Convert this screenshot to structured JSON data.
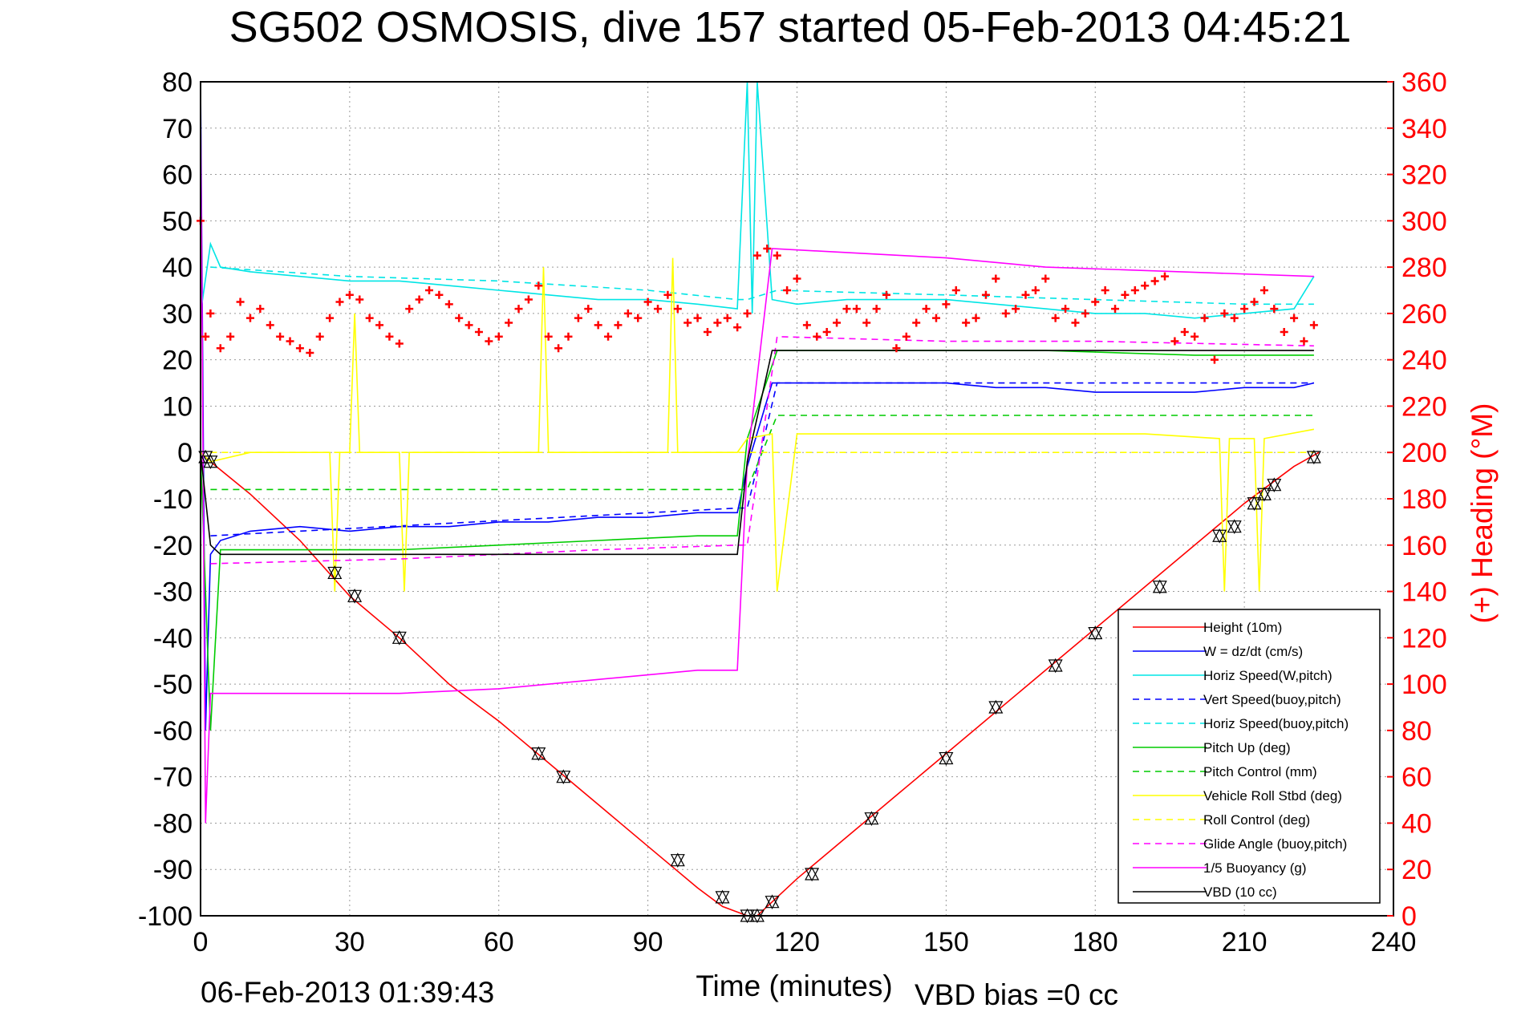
{
  "chart_data": {
    "type": "line",
    "title": "SG502 OSMOSIS, dive 157 started 05-Feb-2013 04:45:21",
    "xlabel": "Time (minutes)",
    "ylabel": "",
    "y2label": "(+) Heading (°M)",
    "xlim": [
      0,
      240
    ],
    "ylim": [
      -100,
      80
    ],
    "y2lim": [
      0,
      360
    ],
    "xticks": [
      "0",
      "30",
      "60",
      "90",
      "120",
      "150",
      "180",
      "210",
      "240"
    ],
    "yticks": [
      "80",
      "70",
      "60",
      "50",
      "40",
      "30",
      "20",
      "10",
      "0",
      "-10",
      "-20",
      "-30",
      "-40",
      "-50",
      "-60",
      "-70",
      "-80",
      "-90",
      "-100"
    ],
    "y2ticks": [
      "360",
      "340",
      "320",
      "300",
      "280",
      "260",
      "240",
      "220",
      "200",
      "180",
      "160",
      "140",
      "120",
      "100",
      "80",
      "60",
      "40",
      "20",
      "0"
    ],
    "grid": true,
    "legend_position": "lower-right",
    "footer_date": "06-Feb-2013 01:39:43",
    "footer_note": "VBD bias =0 cc",
    "series": [
      {
        "name": "Height (10m)",
        "color": "#ff0000",
        "style": "solid",
        "x": [
          0,
          2,
          10,
          20,
          30,
          40,
          50,
          60,
          70,
          80,
          90,
          100,
          105,
          110,
          112,
          115,
          120,
          130,
          140,
          150,
          160,
          170,
          180,
          190,
          200,
          210,
          220,
          225
        ],
        "y": [
          0,
          -2,
          -9,
          -19,
          -31,
          -40,
          -50,
          -58,
          -67,
          -76,
          -85,
          -94,
          -98,
          -100,
          -100,
          -97,
          -92,
          -83,
          -74,
          -65,
          -56,
          -47,
          -38,
          -29,
          -20,
          -11,
          -3,
          0
        ]
      },
      {
        "name": "W = dz/dt (cm/s)",
        "color": "#0000ff",
        "style": "solid",
        "x": [
          0,
          1,
          2,
          4,
          10,
          20,
          30,
          40,
          50,
          60,
          70,
          80,
          90,
          100,
          108,
          110,
          115,
          120,
          130,
          140,
          150,
          160,
          170,
          180,
          190,
          200,
          210,
          220,
          224
        ],
        "y": [
          80,
          -60,
          -22,
          -19,
          -17,
          -16,
          -17,
          -16,
          -16,
          -15,
          -15,
          -14,
          -14,
          -13,
          -13,
          -3,
          15,
          15,
          15,
          15,
          15,
          14,
          14,
          13,
          13,
          13,
          14,
          14,
          15
        ]
      },
      {
        "name": "Horiz Speed(W,pitch)",
        "color": "#00e5e5",
        "style": "solid",
        "x": [
          0,
          2,
          4,
          10,
          20,
          30,
          40,
          50,
          60,
          70,
          80,
          90,
          100,
          108,
          110,
          111,
          112,
          115,
          120,
          130,
          140,
          150,
          160,
          170,
          180,
          190,
          200,
          210,
          220,
          224
        ],
        "y": [
          30,
          45,
          40,
          39,
          38,
          37,
          37,
          36,
          35,
          34,
          33,
          33,
          32,
          31,
          80,
          30,
          80,
          33,
          32,
          33,
          33,
          33,
          32,
          31,
          30,
          30,
          29,
          30,
          31,
          38
        ]
      },
      {
        "name": "Vert Speed(buoy,pitch)",
        "color": "#0000ff",
        "style": "dashed",
        "x": [
          2,
          108,
          110,
          116,
          224
        ],
        "y": [
          -18,
          -12,
          -12,
          15,
          15
        ]
      },
      {
        "name": "Horiz Speed(buoy,pitch)",
        "color": "#00e5e5",
        "style": "dashed",
        "x": [
          2,
          30,
          60,
          90,
          108,
          110,
          116,
          150,
          180,
          210,
          224
        ],
        "y": [
          40,
          38,
          37,
          35,
          33,
          33,
          35,
          34,
          33,
          32,
          32
        ]
      },
      {
        "name": "Pitch Up (deg)",
        "color": "#00cc00",
        "style": "solid",
        "x": [
          0,
          2,
          4,
          20,
          40,
          60,
          80,
          100,
          108,
          110,
          116,
          130,
          150,
          170,
          200,
          224
        ],
        "y": [
          0,
          -60,
          -21,
          -21,
          -21,
          -20,
          -19,
          -18,
          -18,
          3,
          22,
          22,
          22,
          22,
          21,
          21
        ]
      },
      {
        "name": "Pitch Control (mm)",
        "color": "#00cc00",
        "style": "dashed",
        "x": [
          2,
          108,
          110,
          116,
          224
        ],
        "y": [
          -8,
          -8,
          -8,
          8,
          8
        ]
      },
      {
        "name": "Vehicle Roll Stbd (deg)",
        "color": "#ffff00",
        "style": "solid",
        "x": [
          0,
          2,
          10,
          26,
          27,
          28,
          30,
          31,
          32,
          40,
          41,
          42,
          68,
          69,
          70,
          94,
          95,
          96,
          108,
          110,
          115,
          116,
          120,
          130,
          150,
          170,
          190,
          205,
          206,
          207,
          212,
          213,
          214,
          224
        ],
        "y": [
          0,
          -2,
          0,
          0,
          -30,
          0,
          0,
          30,
          0,
          0,
          -30,
          0,
          0,
          40,
          0,
          0,
          42,
          0,
          0,
          3,
          4,
          -30,
          4,
          4,
          4,
          4,
          4,
          3,
          -30,
          3,
          3,
          -30,
          3,
          5
        ]
      },
      {
        "name": "Roll Control (deg)",
        "color": "#ffff00",
        "style": "dashed",
        "x": [
          2,
          108,
          110,
          224
        ],
        "y": [
          0,
          0,
          0,
          0
        ]
      },
      {
        "name": "Glide Angle (buoy,pitch)",
        "color": "#ff00ff",
        "style": "dashed",
        "x": [
          2,
          40,
          80,
          108,
          110,
          116,
          150,
          180,
          224
        ],
        "y": [
          -24,
          -23,
          -21,
          -20,
          -20,
          25,
          24,
          24,
          23
        ]
      },
      {
        "name": "1/5 Buoyancy (g)",
        "color": "#ff00ff",
        "style": "solid",
        "x": [
          0,
          1,
          2,
          40,
          60,
          80,
          100,
          108,
          110,
          115,
          150,
          170,
          224
        ],
        "y": [
          75,
          -80,
          -52,
          -52,
          -51,
          -49,
          -47,
          -47,
          -2,
          44,
          42,
          40,
          38
        ]
      },
      {
        "name": "VBD (10 cc)",
        "color": "#000000",
        "style": "solid",
        "x": [
          0,
          2,
          4,
          108,
          110,
          115,
          116,
          224
        ],
        "y": [
          0,
          -20,
          -22,
          -22,
          -2,
          22,
          22,
          22
        ]
      }
    ],
    "heading_series": {
      "name": "Heading",
      "color": "#ff0000",
      "marker": "+",
      "axis": "right",
      "x": [
        0,
        1,
        2,
        4,
        6,
        8,
        10,
        12,
        14,
        16,
        18,
        20,
        22,
        24,
        26,
        28,
        30,
        32,
        34,
        36,
        38,
        40,
        42,
        44,
        46,
        48,
        50,
        52,
        54,
        56,
        58,
        60,
        62,
        64,
        66,
        68,
        70,
        72,
        74,
        76,
        78,
        80,
        82,
        84,
        86,
        88,
        90,
        92,
        94,
        96,
        98,
        100,
        102,
        104,
        106,
        108,
        110,
        112,
        114,
        116,
        118,
        120,
        122,
        124,
        126,
        128,
        130,
        132,
        134,
        136,
        138,
        140,
        142,
        144,
        146,
        148,
        150,
        152,
        154,
        156,
        158,
        160,
        162,
        164,
        166,
        168,
        170,
        172,
        174,
        176,
        178,
        180,
        182,
        184,
        186,
        188,
        190,
        192,
        194,
        196,
        198,
        200,
        202,
        204,
        206,
        208,
        210,
        212,
        214,
        216,
        218,
        220,
        222,
        224
      ],
      "y": [
        300,
        250,
        260,
        245,
        250,
        265,
        258,
        262,
        255,
        250,
        248,
        245,
        243,
        250,
        258,
        265,
        268,
        266,
        258,
        255,
        250,
        247,
        262,
        266,
        270,
        268,
        264,
        258,
        255,
        252,
        248,
        250,
        256,
        262,
        266,
        272,
        250,
        245,
        250,
        258,
        262,
        255,
        250,
        255,
        260,
        258,
        265,
        262,
        268,
        262,
        256,
        258,
        252,
        256,
        258,
        254,
        260,
        285,
        288,
        285,
        270,
        275,
        255,
        250,
        252,
        256,
        262,
        262,
        256,
        262,
        268,
        245,
        250,
        256,
        262,
        258,
        264,
        270,
        256,
        258,
        268,
        275,
        260,
        262,
        268,
        270,
        275,
        258,
        262,
        256,
        260,
        265,
        270,
        262,
        268,
        270,
        272,
        274,
        276,
        248,
        252,
        250,
        258,
        240,
        260,
        258,
        262,
        265,
        270,
        262,
        252,
        258,
        248,
        255
      ]
    },
    "markers_triangle": {
      "x": [
        1,
        2,
        27,
        31,
        40,
        68,
        73,
        96,
        105,
        110,
        112,
        115,
        123,
        135,
        150,
        160,
        172,
        180,
        193,
        205,
        208,
        212,
        214,
        216,
        224
      ],
      "y": [
        -1,
        -2,
        -26,
        -31,
        -40,
        -65,
        -70,
        -88,
        -96,
        -100,
        -100,
        -97,
        -91,
        -79,
        -66,
        -55,
        -46,
        -39,
        -29,
        -18,
        -16,
        -11,
        -9,
        -7,
        -1
      ]
    }
  }
}
